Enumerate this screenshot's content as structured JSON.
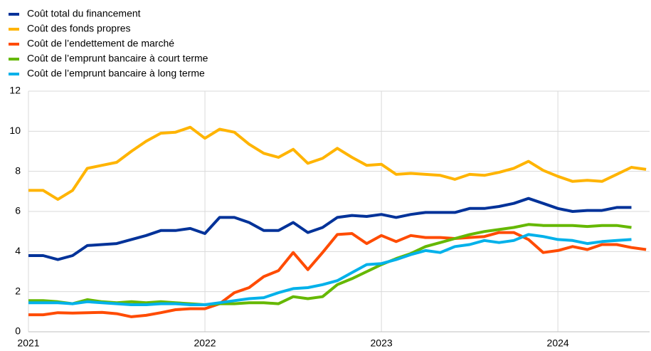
{
  "chart_data": {
    "type": "line",
    "categories": [
      "2021",
      null,
      null,
      null,
      null,
      null,
      null,
      null,
      null,
      null,
      null,
      null,
      "2022",
      null,
      null,
      null,
      null,
      null,
      null,
      null,
      null,
      null,
      null,
      null,
      "2023",
      null,
      null,
      null,
      null,
      null,
      null,
      null,
      null,
      null,
      null,
      null,
      "2024",
      null,
      null,
      null,
      null,
      null,
      null
    ],
    "series": [
      {
        "name": "Coût total du financement",
        "color": "#003299",
        "values": [
          3.8,
          3.8,
          3.6,
          3.8,
          4.3,
          4.35,
          4.4,
          4.6,
          4.8,
          5.05,
          5.05,
          5.15,
          4.9,
          5.7,
          5.7,
          5.45,
          5.05,
          5.05,
          5.45,
          4.95,
          5.2,
          5.7,
          5.8,
          5.75,
          5.85,
          5.7,
          5.85,
          5.95,
          5.95,
          5.95,
          6.15,
          6.15,
          6.25,
          6.4,
          6.65,
          6.4,
          6.15,
          6.0,
          6.05,
          6.05,
          6.2,
          6.2,
          null
        ]
      },
      {
        "name": "Coût des fonds propres",
        "color": "#ffb400",
        "values": [
          7.05,
          7.05,
          6.6,
          7.05,
          8.15,
          8.3,
          8.45,
          9.0,
          9.5,
          9.9,
          9.95,
          10.2,
          9.65,
          10.1,
          9.95,
          9.35,
          8.9,
          8.7,
          9.1,
          8.4,
          8.65,
          9.15,
          8.7,
          8.3,
          8.35,
          7.85,
          7.9,
          7.85,
          7.8,
          7.6,
          7.85,
          7.8,
          7.95,
          8.15,
          8.5,
          8.05,
          7.75,
          7.5,
          7.55,
          7.5,
          7.85,
          8.2,
          8.1
        ]
      },
      {
        "name": "Coût de l’endettement de marché",
        "color": "#ff4b00",
        "values": [
          0.85,
          0.85,
          0.95,
          0.93,
          0.95,
          0.97,
          0.9,
          0.75,
          0.82,
          0.95,
          1.1,
          1.15,
          1.15,
          1.4,
          1.95,
          2.2,
          2.75,
          3.05,
          3.95,
          3.1,
          3.95,
          4.85,
          4.9,
          4.4,
          4.8,
          4.5,
          4.8,
          4.7,
          4.7,
          4.65,
          4.7,
          4.75,
          4.95,
          4.95,
          4.6,
          3.95,
          4.05,
          4.25,
          4.1,
          4.35,
          4.35,
          4.2,
          4.1
        ]
      },
      {
        "name": "Coût de l’emprunt bancaire à court terme",
        "color": "#65b800",
        "values": [
          1.55,
          1.55,
          1.5,
          1.4,
          1.6,
          1.5,
          1.45,
          1.5,
          1.45,
          1.5,
          1.45,
          1.4,
          1.35,
          1.4,
          1.4,
          1.45,
          1.45,
          1.4,
          1.75,
          1.65,
          1.75,
          2.35,
          2.65,
          3.0,
          3.35,
          3.65,
          3.9,
          4.25,
          4.45,
          4.65,
          4.85,
          5.0,
          5.1,
          5.2,
          5.35,
          5.3,
          5.3,
          5.3,
          5.25,
          5.3,
          5.3,
          5.2,
          null
        ]
      },
      {
        "name": "Coût de l’emprunt bancaire à long terme",
        "color": "#00b1ea",
        "values": [
          1.45,
          1.45,
          1.45,
          1.4,
          1.5,
          1.45,
          1.4,
          1.35,
          1.35,
          1.4,
          1.4,
          1.35,
          1.35,
          1.45,
          1.55,
          1.65,
          1.7,
          1.95,
          2.15,
          2.2,
          2.35,
          2.55,
          2.95,
          3.35,
          3.4,
          3.6,
          3.85,
          4.05,
          3.95,
          4.25,
          4.35,
          4.55,
          4.45,
          4.55,
          4.85,
          4.75,
          4.6,
          4.55,
          4.4,
          4.5,
          4.55,
          4.6,
          null
        ]
      }
    ],
    "ylim": [
      0,
      12
    ],
    "yticks": [
      0,
      2,
      4,
      6,
      8,
      10,
      12
    ],
    "grid": true,
    "legend": "top-left"
  }
}
